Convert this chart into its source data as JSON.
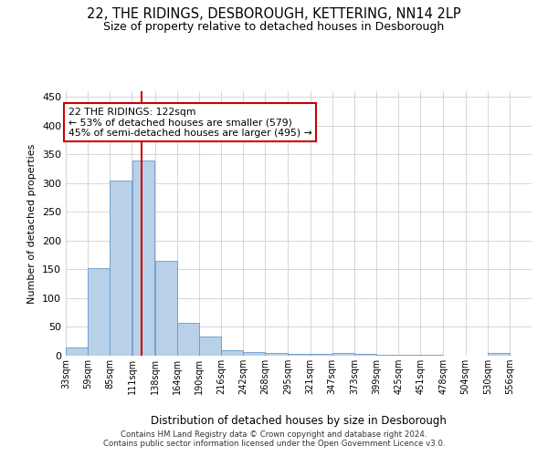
{
  "title": "22, THE RIDINGS, DESBOROUGH, KETTERING, NN14 2LP",
  "subtitle": "Size of property relative to detached houses in Desborough",
  "xlabel": "Distribution of detached houses by size in Desborough",
  "ylabel": "Number of detached properties",
  "footer_line1": "Contains HM Land Registry data © Crown copyright and database right 2024.",
  "footer_line2": "Contains public sector information licensed under the Open Government Licence v3.0.",
  "annotation_line1": "22 THE RIDINGS: 122sqm",
  "annotation_line2": "← 53% of detached houses are smaller (579)",
  "annotation_line3": "45% of semi-detached houses are larger (495) →",
  "bar_left_edges": [
    33,
    59,
    85,
    111,
    138,
    164,
    190,
    216,
    242,
    268,
    295,
    321,
    347,
    373,
    399,
    425,
    451,
    478,
    504,
    530
  ],
  "bar_widths": [
    26,
    26,
    26,
    27,
    26,
    26,
    26,
    26,
    26,
    27,
    26,
    26,
    26,
    26,
    26,
    26,
    27,
    26,
    26,
    26
  ],
  "bar_heights": [
    15,
    153,
    305,
    340,
    165,
    57,
    34,
    9,
    6,
    4,
    3,
    3,
    5,
    3,
    2,
    1,
    1,
    0,
    0,
    5
  ],
  "bar_color": "#b8d0e8",
  "bar_edge_color": "#6699cc",
  "vline_x": 122,
  "vline_color": "#cc0000",
  "ylim": [
    0,
    460
  ],
  "yticks": [
    0,
    50,
    100,
    150,
    200,
    250,
    300,
    350,
    400,
    450
  ],
  "tick_labels": [
    "33sqm",
    "59sqm",
    "85sqm",
    "111sqm",
    "138sqm",
    "164sqm",
    "190sqm",
    "216sqm",
    "242sqm",
    "268sqm",
    "295sqm",
    "321sqm",
    "347sqm",
    "373sqm",
    "399sqm",
    "425sqm",
    "451sqm",
    "478sqm",
    "504sqm",
    "530sqm",
    "556sqm"
  ],
  "background_color": "#ffffff",
  "grid_color": "#d0d0d0",
  "xlim_left": 33,
  "xlim_right": 582
}
